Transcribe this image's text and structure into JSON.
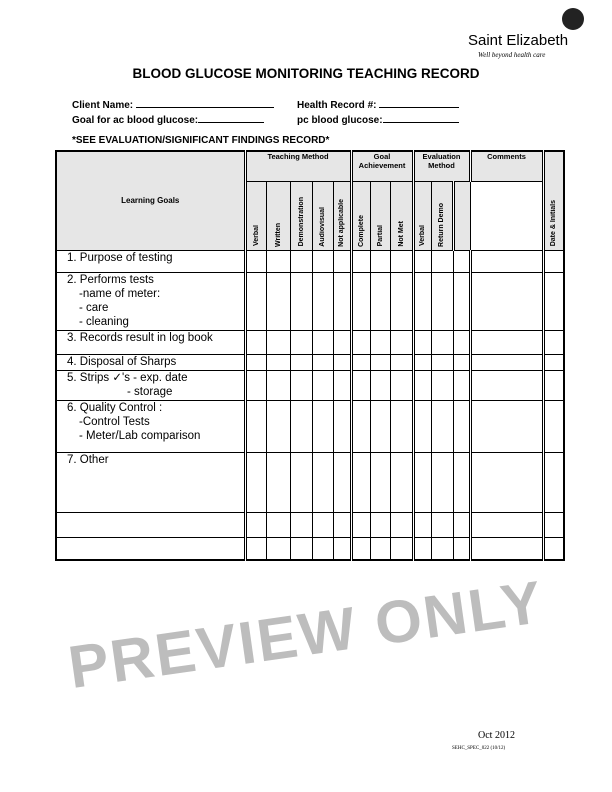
{
  "logo": {
    "name": "Saint Elizabeth",
    "tagline": "Well beyond health care"
  },
  "title": "BLOOD GLUCOSE MONITORING TEACHING RECORD",
  "fields": {
    "client_name": "Client Name:",
    "health_record": "Health Record #:",
    "goal_ac": "Goal for ac blood glucose:",
    "pc": "pc blood glucose:"
  },
  "note": "*SEE EVALUATION/SIGNIFICANT FINDINGS RECORD*",
  "table": {
    "learning_goals": "Learning Goals",
    "groups": {
      "teaching": "Teaching Method",
      "goal": "Goal Achievement",
      "eval": "Evaluation Method",
      "comments": "Comments"
    },
    "cols": [
      "Verbal",
      "Written",
      "Demonstration",
      "Audiovisual",
      "Not applicable",
      "Complete",
      "Partial",
      "Not Met",
      "Verbal",
      "Return Demo",
      "",
      "Date & Initials"
    ],
    "rows": [
      [
        "1.  Purpose of testing"
      ],
      [
        "2.  Performs tests",
        "-name of meter:",
        "- care",
        "- cleaning"
      ],
      [
        "3.  Records result in log book"
      ],
      [
        "4.  Disposal of Sharps"
      ],
      [
        "5.  Strips    ✓'s - exp. date",
        "- storage"
      ],
      [
        "6. Quality Control :",
        "-Control Tests",
        "- Meter/Lab comparison"
      ],
      [
        "7. Other"
      ],
      [
        ""
      ],
      [
        ""
      ]
    ]
  },
  "watermark": "PREVIEW ONLY",
  "footer": {
    "date": "Oct 2012",
    "code": "SEHC_SPEC_022 (10/12)"
  }
}
